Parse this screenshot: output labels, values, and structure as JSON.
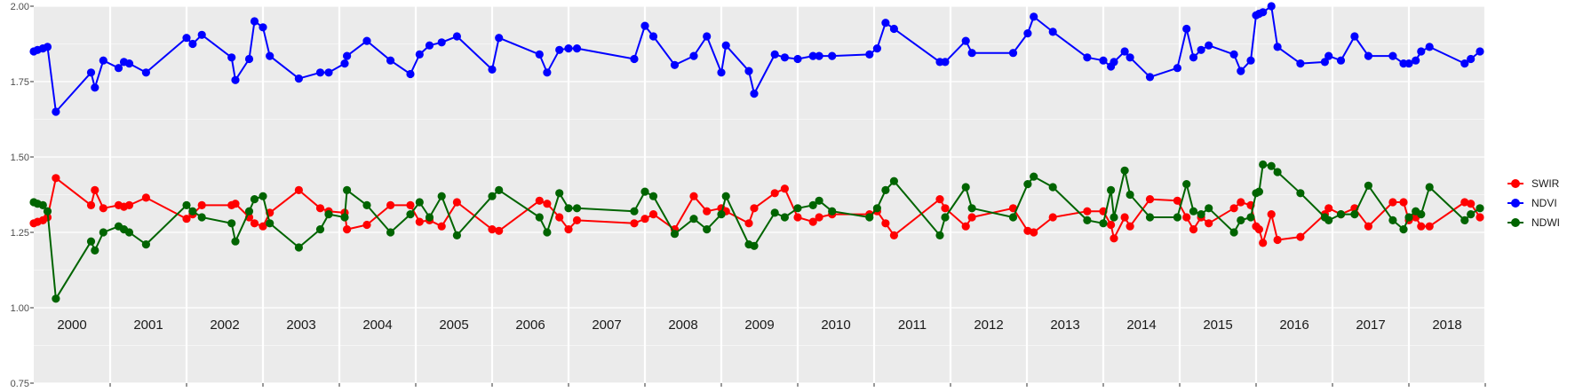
{
  "chart_data": {
    "type": "line",
    "title": "",
    "xlabel": "",
    "ylabel": "",
    "ylim": [
      0.75,
      2.0
    ],
    "xlim": [
      2000.0,
      2019.0
    ],
    "yticks": [
      "0.75",
      "1.00",
      "1.25",
      "1.50",
      "1.75",
      "2.00"
    ],
    "year_labels": [
      "2000",
      "2001",
      "2002",
      "2003",
      "2004",
      "2005",
      "2006",
      "2007",
      "2008",
      "2009",
      "2010",
      "2011",
      "2012",
      "2013",
      "2014",
      "2015",
      "2016",
      "2017",
      "2018"
    ],
    "grid": true,
    "legend_position": "right",
    "colors": {
      "SWIR": "#ff0000",
      "NDVI": "#0000ff",
      "NDWI": "#006400",
      "panel": "#ebebeb",
      "gridline": "#ffffff"
    },
    "series": [
      {
        "name": "SWIR",
        "x": [
          2000.0,
          2000.05,
          2000.12,
          2000.18,
          2000.29,
          2000.75,
          2000.8,
          2000.91,
          2001.11,
          2001.18,
          2001.25,
          2001.47,
          2002.0,
          2002.08,
          2002.2,
          2002.59,
          2002.64,
          2002.82,
          2002.89,
          2003.0,
          2003.09,
          2003.47,
          2003.75,
          2003.86,
          2004.07,
          2004.1,
          2004.36,
          2004.67,
          2004.93,
          2005.05,
          2005.18,
          2005.34,
          2005.54,
          2006.0,
          2006.09,
          2006.62,
          2006.72,
          2006.88,
          2007.0,
          2007.11,
          2007.86,
          2008.0,
          2008.11,
          2008.39,
          2008.64,
          2008.81,
          2009.0,
          2009.06,
          2009.36,
          2009.43,
          2009.7,
          2009.83,
          2010.0,
          2010.2,
          2010.28,
          2010.45,
          2010.94,
          2011.04,
          2011.15,
          2011.26,
          2011.86,
          2011.93,
          2012.2,
          2012.28,
          2012.82,
          2013.01,
          2013.09,
          2013.34,
          2013.79,
          2014.0,
          2014.1,
          2014.14,
          2014.28,
          2014.35,
          2014.61,
          2014.97,
          2015.09,
          2015.18,
          2015.28,
          2015.38,
          2015.71,
          2015.8,
          2015.93,
          2016.0,
          2016.04,
          2016.09,
          2016.2,
          2016.28,
          2016.58,
          2016.9,
          2016.95,
          2017.11,
          2017.29,
          2017.47,
          2017.79,
          2017.93,
          2018.0,
          2018.09,
          2018.16,
          2018.27,
          2018.73,
          2018.81,
          2018.93
        ],
        "values": [
          1.28,
          1.285,
          1.29,
          1.3,
          1.43,
          1.34,
          1.39,
          1.33,
          1.34,
          1.335,
          1.34,
          1.365,
          1.295,
          1.31,
          1.34,
          1.34,
          1.345,
          1.3,
          1.28,
          1.27,
          1.315,
          1.39,
          1.33,
          1.32,
          1.315,
          1.26,
          1.275,
          1.34,
          1.34,
          1.285,
          1.29,
          1.27,
          1.35,
          1.26,
          1.255,
          1.355,
          1.345,
          1.3,
          1.26,
          1.29,
          1.28,
          1.295,
          1.31,
          1.26,
          1.37,
          1.32,
          1.33,
          1.32,
          1.28,
          1.33,
          1.38,
          1.395,
          1.3,
          1.285,
          1.3,
          1.31,
          1.31,
          1.32,
          1.28,
          1.24,
          1.36,
          1.33,
          1.27,
          1.3,
          1.33,
          1.255,
          1.25,
          1.3,
          1.32,
          1.32,
          1.275,
          1.23,
          1.3,
          1.27,
          1.36,
          1.355,
          1.3,
          1.26,
          1.3,
          1.28,
          1.33,
          1.35,
          1.34,
          1.27,
          1.26,
          1.215,
          1.31,
          1.225,
          1.235,
          1.31,
          1.33,
          1.31,
          1.33,
          1.27,
          1.35,
          1.35,
          1.29,
          1.3,
          1.27,
          1.27,
          1.35,
          1.345,
          1.3
        ]
      },
      {
        "name": "NDVI",
        "x": [
          2000.0,
          2000.05,
          2000.12,
          2000.18,
          2000.29,
          2000.75,
          2000.8,
          2000.91,
          2001.11,
          2001.18,
          2001.25,
          2001.47,
          2002.0,
          2002.08,
          2002.2,
          2002.59,
          2002.64,
          2002.82,
          2002.89,
          2003.0,
          2003.09,
          2003.47,
          2003.75,
          2003.86,
          2004.07,
          2004.1,
          2004.36,
          2004.67,
          2004.93,
          2005.05,
          2005.18,
          2005.34,
          2005.54,
          2006.0,
          2006.09,
          2006.62,
          2006.72,
          2006.88,
          2007.0,
          2007.11,
          2007.86,
          2008.0,
          2008.11,
          2008.39,
          2008.64,
          2008.81,
          2009.0,
          2009.06,
          2009.36,
          2009.43,
          2009.7,
          2009.83,
          2010.0,
          2010.2,
          2010.28,
          2010.45,
          2010.94,
          2011.04,
          2011.15,
          2011.26,
          2011.86,
          2011.93,
          2012.2,
          2012.28,
          2012.82,
          2013.01,
          2013.09,
          2013.34,
          2013.79,
          2014.0,
          2014.1,
          2014.14,
          2014.28,
          2014.35,
          2014.61,
          2014.97,
          2015.09,
          2015.18,
          2015.28,
          2015.38,
          2015.71,
          2015.8,
          2015.93,
          2016.0,
          2016.04,
          2016.09,
          2016.2,
          2016.28,
          2016.58,
          2016.9,
          2016.95,
          2017.11,
          2017.29,
          2017.47,
          2017.79,
          2017.93,
          2018.0,
          2018.09,
          2018.16,
          2018.27,
          2018.73,
          2018.81,
          2018.93
        ],
        "values": [
          1.85,
          1.855,
          1.86,
          1.865,
          1.65,
          1.78,
          1.73,
          1.82,
          1.795,
          1.815,
          1.81,
          1.78,
          1.895,
          1.875,
          1.905,
          1.83,
          1.755,
          1.825,
          1.95,
          1.93,
          1.835,
          1.76,
          1.78,
          1.78,
          1.81,
          1.835,
          1.885,
          1.82,
          1.775,
          1.84,
          1.87,
          1.88,
          1.9,
          1.79,
          1.895,
          1.84,
          1.78,
          1.855,
          1.86,
          1.86,
          1.825,
          1.935,
          1.9,
          1.805,
          1.835,
          1.9,
          1.78,
          1.87,
          1.785,
          1.71,
          1.84,
          1.83,
          1.825,
          1.835,
          1.835,
          1.835,
          1.84,
          1.86,
          1.945,
          1.925,
          1.815,
          1.815,
          1.885,
          1.845,
          1.845,
          1.91,
          1.965,
          1.915,
          1.83,
          1.82,
          1.8,
          1.815,
          1.85,
          1.83,
          1.765,
          1.795,
          1.925,
          1.83,
          1.855,
          1.87,
          1.84,
          1.785,
          1.82,
          1.97,
          1.975,
          1.98,
          2.0,
          1.865,
          1.81,
          1.815,
          1.835,
          1.82,
          1.9,
          1.835,
          1.835,
          1.81,
          1.81,
          1.82,
          1.85,
          1.865,
          1.81,
          1.825,
          1.85
        ]
      },
      {
        "name": "NDWI",
        "x": [
          2000.0,
          2000.05,
          2000.12,
          2000.18,
          2000.29,
          2000.75,
          2000.8,
          2000.91,
          2001.11,
          2001.18,
          2001.25,
          2001.47,
          2002.0,
          2002.08,
          2002.2,
          2002.59,
          2002.64,
          2002.82,
          2002.89,
          2003.0,
          2003.09,
          2003.47,
          2003.75,
          2003.86,
          2004.07,
          2004.1,
          2004.36,
          2004.67,
          2004.93,
          2005.05,
          2005.18,
          2005.34,
          2005.54,
          2006.0,
          2006.09,
          2006.62,
          2006.72,
          2006.88,
          2007.0,
          2007.11,
          2007.86,
          2008.0,
          2008.11,
          2008.39,
          2008.64,
          2008.81,
          2009.0,
          2009.06,
          2009.36,
          2009.43,
          2009.7,
          2009.83,
          2010.0,
          2010.2,
          2010.28,
          2010.45,
          2010.94,
          2011.04,
          2011.15,
          2011.26,
          2011.86,
          2011.93,
          2012.2,
          2012.28,
          2012.82,
          2013.01,
          2013.09,
          2013.34,
          2013.79,
          2014.0,
          2014.1,
          2014.14,
          2014.28,
          2014.35,
          2014.61,
          2014.97,
          2015.09,
          2015.18,
          2015.28,
          2015.38,
          2015.71,
          2015.8,
          2015.93,
          2016.0,
          2016.04,
          2016.09,
          2016.2,
          2016.28,
          2016.58,
          2016.9,
          2016.95,
          2017.11,
          2017.29,
          2017.47,
          2017.79,
          2017.93,
          2018.0,
          2018.09,
          2018.16,
          2018.27,
          2018.73,
          2018.81,
          2018.93
        ],
        "values": [
          1.35,
          1.345,
          1.34,
          1.32,
          1.03,
          1.22,
          1.19,
          1.25,
          1.27,
          1.26,
          1.25,
          1.21,
          1.34,
          1.32,
          1.3,
          1.28,
          1.22,
          1.32,
          1.36,
          1.37,
          1.28,
          1.2,
          1.26,
          1.31,
          1.3,
          1.39,
          1.34,
          1.25,
          1.31,
          1.35,
          1.3,
          1.37,
          1.24,
          1.37,
          1.39,
          1.3,
          1.25,
          1.38,
          1.33,
          1.33,
          1.32,
          1.385,
          1.37,
          1.245,
          1.295,
          1.26,
          1.31,
          1.37,
          1.21,
          1.205,
          1.315,
          1.3,
          1.33,
          1.34,
          1.355,
          1.32,
          1.3,
          1.33,
          1.39,
          1.42,
          1.24,
          1.3,
          1.4,
          1.33,
          1.3,
          1.41,
          1.435,
          1.4,
          1.29,
          1.28,
          1.39,
          1.3,
          1.455,
          1.375,
          1.3,
          1.3,
          1.41,
          1.32,
          1.31,
          1.33,
          1.25,
          1.29,
          1.3,
          1.38,
          1.385,
          1.475,
          1.47,
          1.45,
          1.38,
          1.3,
          1.29,
          1.31,
          1.31,
          1.405,
          1.29,
          1.26,
          1.3,
          1.32,
          1.31,
          1.4,
          1.29,
          1.31,
          1.33
        ]
      }
    ]
  }
}
